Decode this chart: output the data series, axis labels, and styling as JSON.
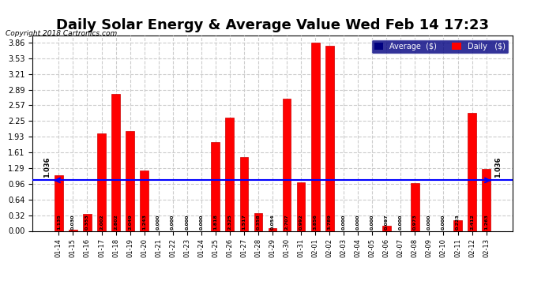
{
  "title": "Daily Solar Energy & Average Value Wed Feb 14 17:23",
  "copyright": "Copyright 2018 Cartronics.com",
  "categories": [
    "01-14",
    "01-15",
    "01-16",
    "01-17",
    "01-18",
    "01-19",
    "01-20",
    "01-21",
    "01-22",
    "01-23",
    "01-24",
    "01-25",
    "01-26",
    "01-27",
    "01-28",
    "01-29",
    "01-30",
    "01-31",
    "02-01",
    "02-02",
    "02-03",
    "02-04",
    "02-05",
    "02-06",
    "02-07",
    "02-08",
    "02-09",
    "02-10",
    "02-11",
    "02-12",
    "02-13"
  ],
  "values": [
    1.135,
    0.03,
    0.353,
    2.002,
    2.802,
    2.049,
    1.243,
    0.0,
    0.0,
    0.0,
    0.0,
    1.818,
    2.325,
    1.517,
    0.358,
    0.054,
    2.707,
    0.992,
    3.856,
    3.789,
    0.0,
    0.0,
    0.0,
    0.097,
    0.0,
    0.973,
    0.0,
    0.0,
    0.223,
    2.412,
    1.263
  ],
  "average_line": 1.036,
  "bar_color": "#ff0000",
  "bar_edge_color": "#cc0000",
  "average_line_color": "#0000ff",
  "grid_color": "#cccccc",
  "background_color": "#ffffff",
  "plot_bg_color": "#ffffff",
  "title_fontsize": 13,
  "ylabel_values": [
    0.0,
    0.32,
    0.64,
    0.96,
    1.29,
    1.61,
    1.93,
    2.25,
    2.57,
    2.89,
    3.21,
    3.53,
    3.86
  ],
  "ylim": [
    0,
    4.0
  ],
  "legend_average_label": "Average  ($)",
  "legend_daily_label": "Daily   ($)"
}
